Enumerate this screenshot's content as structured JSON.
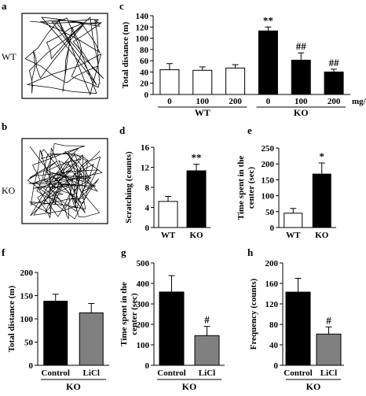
{
  "panels": {
    "a": {
      "label": "a",
      "side_label": "WT"
    },
    "b": {
      "label": "b",
      "side_label": "KO"
    }
  },
  "colors": {
    "open": "#ffffff",
    "filled": "#000000",
    "licl": "#808080"
  },
  "chart_data": [
    {
      "id": "c",
      "panel_label": "c",
      "type": "bar",
      "ylabel": "Total distance (m)",
      "ylim": [
        0,
        140
      ],
      "yticks": [
        0,
        20,
        40,
        60,
        80,
        100,
        120,
        140
      ],
      "categories": [
        "0",
        "100",
        "200",
        "0",
        "100",
        "200"
      ],
      "values": [
        44,
        43,
        47,
        113,
        61,
        40
      ],
      "errors": [
        11,
        6,
        6,
        7,
        13,
        5
      ],
      "fills": [
        "open",
        "open",
        "open",
        "filled",
        "filled",
        "filled"
      ],
      "annotations": [
        "",
        "",
        "",
        "**",
        "##",
        "##"
      ],
      "unit_label": "mg/kg",
      "groups": [
        {
          "label": "WT",
          "from": 0,
          "to": 2
        },
        {
          "label": "KO",
          "from": 3,
          "to": 5
        }
      ]
    },
    {
      "id": "d",
      "panel_label": "d",
      "type": "bar",
      "ylabel": "Scratching (counts)",
      "ylim": [
        0,
        16
      ],
      "yticks": [
        0,
        4,
        8,
        12,
        16
      ],
      "categories": [
        "WT",
        "KO"
      ],
      "values": [
        5.2,
        11.3
      ],
      "errors": [
        1.0,
        1.3
      ],
      "fills": [
        "open",
        "filled"
      ],
      "annotations": [
        "",
        "**"
      ]
    },
    {
      "id": "e",
      "panel_label": "e",
      "type": "bar",
      "ylabel": "Time spent in the center (sec)",
      "ylim": [
        0,
        250
      ],
      "yticks": [
        0,
        50,
        100,
        150,
        200,
        250
      ],
      "categories": [
        "WT",
        "KO"
      ],
      "values": [
        45,
        168
      ],
      "errors": [
        15,
        35
      ],
      "fills": [
        "open",
        "filled"
      ],
      "annotations": [
        "",
        "*"
      ]
    },
    {
      "id": "f",
      "panel_label": "f",
      "type": "bar",
      "ylabel": "Total distance (m)",
      "ylim": [
        0,
        200
      ],
      "yticks": [
        0,
        50,
        100,
        150,
        200
      ],
      "categories": [
        "Control",
        "LiCl"
      ],
      "values": [
        138,
        113
      ],
      "errors": [
        15,
        20
      ],
      "fills": [
        "filled",
        "licl"
      ],
      "annotations": [
        "",
        ""
      ],
      "group_label": "KO"
    },
    {
      "id": "g",
      "panel_label": "g",
      "type": "bar",
      "ylabel": "Time spent in the center (sec)",
      "ylim": [
        0,
        500
      ],
      "yticks": [
        0,
        100,
        200,
        300,
        400,
        500
      ],
      "categories": [
        "Control",
        "LiCl"
      ],
      "values": [
        358,
        145
      ],
      "errors": [
        80,
        45
      ],
      "fills": [
        "filled",
        "licl"
      ],
      "annotations": [
        "",
        "#"
      ],
      "group_label": "KO"
    },
    {
      "id": "h",
      "panel_label": "h",
      "type": "bar",
      "ylabel": "Frequency (counts)",
      "ylim": [
        0,
        200
      ],
      "yticks": [
        0,
        40,
        80,
        120,
        160,
        200
      ],
      "categories": [
        "Control",
        "LiCl"
      ],
      "values": [
        143,
        61
      ],
      "errors": [
        27,
        14
      ],
      "fills": [
        "filled",
        "licl"
      ],
      "annotations": [
        "",
        "#"
      ],
      "group_label": "KO"
    }
  ]
}
